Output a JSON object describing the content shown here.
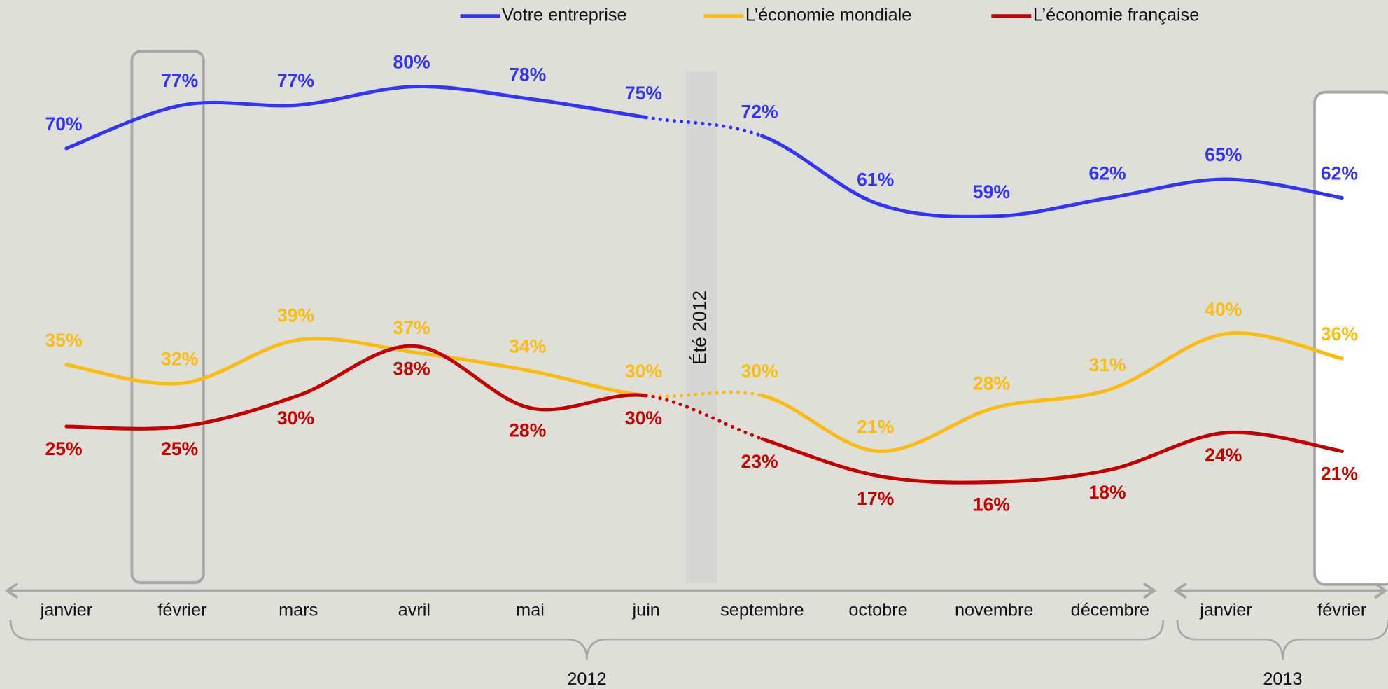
{
  "chart_data": {
    "type": "line",
    "categories": [
      "janvier",
      "février",
      "mars",
      "avril",
      "mai",
      "juin",
      "septembre",
      "octobre",
      "novembre",
      "décembre",
      "janvier",
      "février"
    ],
    "groups": [
      "2012",
      "2013"
    ],
    "band_label": "Été 2012",
    "ylim": [
      0,
      94
    ],
    "series": [
      {
        "name": "Votre entreprise",
        "color": "#3535f0",
        "values": [
          70,
          77,
          77,
          80,
          78,
          75,
          72,
          61,
          59,
          62,
          65,
          62
        ],
        "value_labels": [
          "70%",
          "77%",
          "77%",
          "80%",
          "78%",
          "75%",
          "72%",
          "61%",
          "59%",
          "62%",
          "65%",
          "62%"
        ]
      },
      {
        "name": "L’économie mondiale",
        "color": "#fbbc12",
        "values": [
          35,
          32,
          39,
          37,
          34,
          30,
          30,
          21,
          28,
          31,
          40,
          36
        ],
        "value_labels": [
          "35%",
          "32%",
          "39%",
          "37%",
          "34%",
          "30%",
          "30%",
          "21%",
          "28%",
          "31%",
          "40%",
          "36%"
        ]
      },
      {
        "name": "L’économie française",
        "color": "#c00000",
        "values": [
          25,
          25,
          30,
          38,
          28,
          30,
          23,
          17,
          16,
          18,
          24,
          21
        ],
        "value_labels": [
          "25%",
          "25%",
          "30%",
          "38%",
          "28%",
          "30%",
          "23%",
          "17%",
          "16%",
          "18%",
          "24%",
          "21%"
        ]
      }
    ]
  }
}
